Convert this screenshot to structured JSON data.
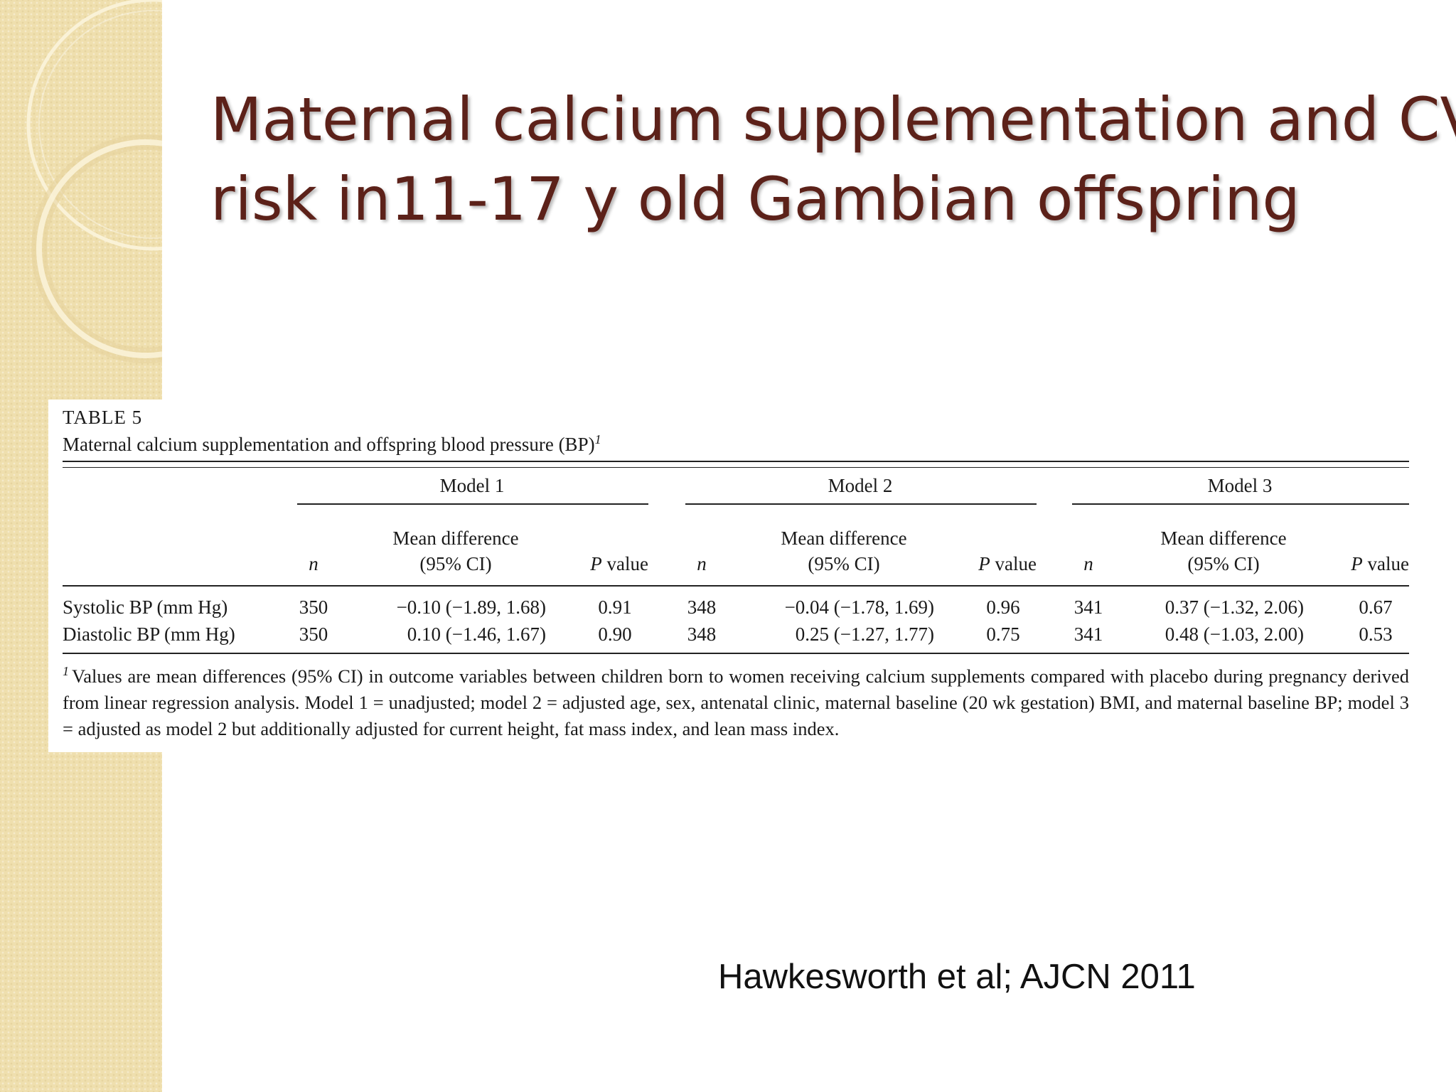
{
  "slide": {
    "title_lines": [
      "Maternal calcium supplementation and CVD",
      "risk in11-17 y old Gambian offspring"
    ],
    "citation": "Hawkesworth et al; AJCN 2011",
    "colors": {
      "title": "#5c2119",
      "sidebar": "#efdfae",
      "sidebar_ring": "#fbf4dc"
    }
  },
  "table": {
    "label": "TABLE 5",
    "caption": "Maternal calcium supplementation and offspring blood pressure (BP)",
    "caption_footnote_mark": "1",
    "models": [
      "Model 1",
      "Model 2",
      "Model 3"
    ],
    "subheaders": {
      "n": "n",
      "mean_diff_line1": "Mean difference",
      "mean_diff_line2": "(95% CI)",
      "p_italic": "P",
      "p_suffix": " value"
    },
    "rows": [
      {
        "label": "Systolic BP (mm Hg)",
        "cells": [
          {
            "n": "350",
            "md": "−0.10 (−1.89, 1.68)",
            "p": "0.91"
          },
          {
            "n": "348",
            "md": "−0.04 (−1.78, 1.69)",
            "p": "0.96"
          },
          {
            "n": "341",
            "md": "0.37 (−1.32, 2.06)",
            "p": "0.67"
          }
        ]
      },
      {
        "label": "Diastolic BP (mm Hg)",
        "cells": [
          {
            "n": "350",
            "md": "0.10 (−1.46, 1.67)",
            "p": "0.90"
          },
          {
            "n": "348",
            "md": "0.25 (−1.27, 1.77)",
            "p": "0.75"
          },
          {
            "n": "341",
            "md": "0.48 (−1.03, 2.00)",
            "p": "0.53"
          }
        ]
      }
    ],
    "footnote_mark": "1",
    "footnote": "Values are mean differences (95% CI) in outcome variables between children born to women receiving calcium supplements compared with placebo during pregnancy derived from linear regression analysis. Model 1 = unadjusted; model 2 = adjusted age, sex, antenatal clinic, maternal baseline (20 wk gestation) BMI, and maternal baseline BP; model 3 = adjusted as model 2 but additionally adjusted for current height, fat mass index, and lean mass index."
  }
}
